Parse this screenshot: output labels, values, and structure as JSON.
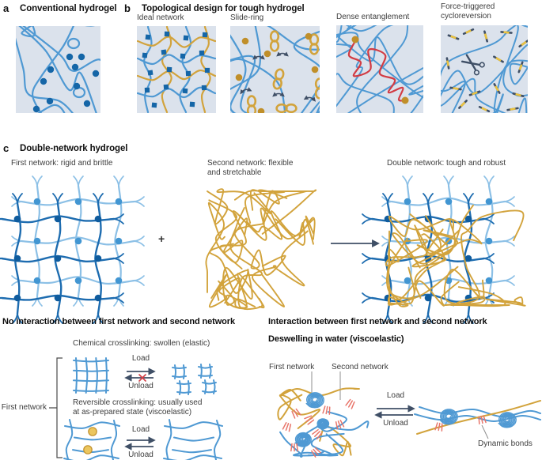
{
  "figure": {
    "panel_a": {
      "letter": "a",
      "title": "Conventional hydrogel"
    },
    "panel_b": {
      "letter": "b",
      "title": "Topological design for tough hydrogel",
      "subpanels": [
        {
          "label": "Ideal network"
        },
        {
          "label": "Slide-ring"
        },
        {
          "label": "Dense entanglement"
        },
        {
          "label_lines": [
            "Force-triggered",
            "cycloreversion"
          ]
        }
      ]
    },
    "panel_c": {
      "letter": "c",
      "title": "Double-network hydrogel",
      "first_label": "First network: rigid and brittle",
      "second_label_lines": [
        "Second network: flexible",
        "and stretchable"
      ],
      "plus": "+",
      "double_label": "Double network: tough and robust"
    },
    "bottom_left": {
      "heading": "No interaction between first network and second network",
      "chemical_label": "Chemical crosslinking: swollen (elastic)",
      "bracket_label": "First network",
      "reversible_lines": [
        "Reversible crosslinking: usually used",
        "at as-prepared state (viscoelastic)"
      ],
      "load": "Load",
      "unload": "Unload"
    },
    "bottom_right": {
      "heading": "Interaction between first network and second network",
      "subheading": "Deswelling in water (viscoelastic)",
      "first_network_label": "First network",
      "second_network_label": "Second network",
      "load": "Load",
      "unload": "Unload",
      "dynamic_bonds_label": "Dynamic bonds"
    }
  },
  "colors": {
    "panel_bg": "#dbe2ec",
    "chain_blue": "#4f99d3",
    "chain_blue_dark": "#1d6cb0",
    "chain_blue_light": "#8cc0e6",
    "node_dark": "#0f5c9e",
    "node_mid": "#4296d2",
    "crosslink_square": "#1566a7",
    "gold": "#d2a33c",
    "gold_dark": "#c08f2a",
    "gold_fill": "#ecc65e",
    "red_chain": "#d23c44",
    "bond_red": "#e8756a",
    "navy": "#3f4f66",
    "yellow_dash": "#eac23f",
    "leader_gray": "#8f8f8f",
    "bracket": "#4a4a4a"
  }
}
